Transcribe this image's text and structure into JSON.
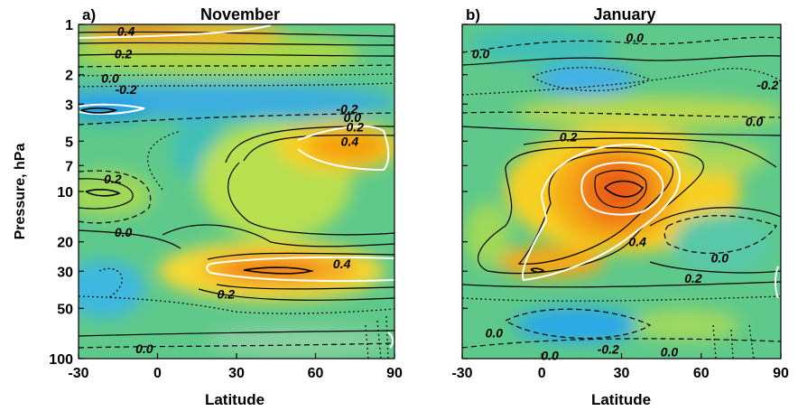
{
  "chart_data": [
    {
      "type": "heatmap",
      "panel_label": "a)",
      "title": "November",
      "xlabel": "Latitude",
      "ylabel": "Pressure, hPa",
      "xlim": [
        -30,
        90
      ],
      "x_ticks": [
        -30,
        0,
        30,
        60,
        90
      ],
      "y_scale": "log",
      "ylim": [
        100,
        1
      ],
      "y_ticks": [
        1,
        2,
        3,
        5,
        7,
        10,
        20,
        30,
        50,
        100
      ],
      "contour_labels": [
        {
          "text": "0.4",
          "lat": -12,
          "p": 1.1
        },
        {
          "text": "0.2",
          "lat": -13,
          "p": 1.5
        },
        {
          "text": "0.0",
          "lat": -18,
          "p": 2.1
        },
        {
          "text": "-0.2",
          "lat": -12,
          "p": 2.45
        },
        {
          "text": "-0.2",
          "lat": 72,
          "p": 3.2
        },
        {
          "text": "0.0",
          "lat": 74,
          "p": 3.6
        },
        {
          "text": "0.2",
          "lat": 75,
          "p": 4.1
        },
        {
          "text": "0.4",
          "lat": 73,
          "p": 5.0
        },
        {
          "text": "0.2",
          "lat": -17,
          "p": 8.4
        },
        {
          "text": "0.0",
          "lat": -13,
          "p": 17.5
        },
        {
          "text": "0.4",
          "lat": 70,
          "p": 27
        },
        {
          "text": "0.2",
          "lat": 26,
          "p": 41
        },
        {
          "text": "0.0",
          "lat": -5,
          "p": 87
        }
      ],
      "features": [
        {
          "kind": "positive-max",
          "lat": 5,
          "p": 1.05,
          "value": 0.4
        },
        {
          "kind": "negative-min",
          "lat": -25,
          "p": 3.0,
          "value": -0.4
        },
        {
          "kind": "negative",
          "lat": 15,
          "p": 2.8,
          "value": -0.25
        },
        {
          "kind": "positive-max",
          "lat": 65,
          "p": 6.0,
          "value": 0.45
        },
        {
          "kind": "positive",
          "lat": -22,
          "p": 10,
          "value": 0.28
        },
        {
          "kind": "positive-max",
          "lat": 40,
          "p": 30,
          "value": 0.5
        },
        {
          "kind": "negative",
          "lat": -20,
          "p": 40,
          "value": -0.2
        },
        {
          "kind": "negative",
          "lat": 60,
          "p": 70,
          "value": -0.15
        }
      ]
    },
    {
      "type": "heatmap",
      "panel_label": "b)",
      "title": "January",
      "xlabel": "Latitude",
      "ylabel": "",
      "xlim": [
        -30,
        90
      ],
      "x_ticks": [
        -30,
        0,
        30,
        60,
        90
      ],
      "y_scale": "log",
      "ylim": [
        100,
        1
      ],
      "y_ticks": [
        1,
        2,
        3,
        5,
        7,
        10,
        20,
        30,
        50,
        100
      ],
      "contour_labels": [
        {
          "text": "0.0",
          "lat": 35,
          "p": 1.2
        },
        {
          "text": "0.0",
          "lat": -23,
          "p": 1.5
        },
        {
          "text": "-0.2",
          "lat": 85,
          "p": 2.3
        },
        {
          "text": "0.0",
          "lat": 80,
          "p": 3.8
        },
        {
          "text": "0.2",
          "lat": 10,
          "p": 4.7
        },
        {
          "text": "0.4",
          "lat": 36,
          "p": 20
        },
        {
          "text": "0.0",
          "lat": 67,
          "p": 25
        },
        {
          "text": "0.2",
          "lat": 57,
          "p": 33
        },
        {
          "text": "0.0",
          "lat": -18,
          "p": 70
        },
        {
          "text": "-0.2",
          "lat": 25,
          "p": 88
        },
        {
          "text": "0.0",
          "lat": 48,
          "p": 91
        },
        {
          "text": "0.0",
          "lat": 3,
          "p": 96
        }
      ],
      "features": [
        {
          "kind": "negative",
          "lat": 27,
          "p": 2.0,
          "value": -0.3
        },
        {
          "kind": "positive-max",
          "lat": 30,
          "p": 10,
          "value": 0.6
        },
        {
          "kind": "positive",
          "lat": 5,
          "p": 29,
          "value": 0.45
        },
        {
          "kind": "negative",
          "lat": 72,
          "p": 22,
          "value": -0.1
        },
        {
          "kind": "negative",
          "lat": 20,
          "p": 75,
          "value": -0.3
        }
      ]
    }
  ]
}
